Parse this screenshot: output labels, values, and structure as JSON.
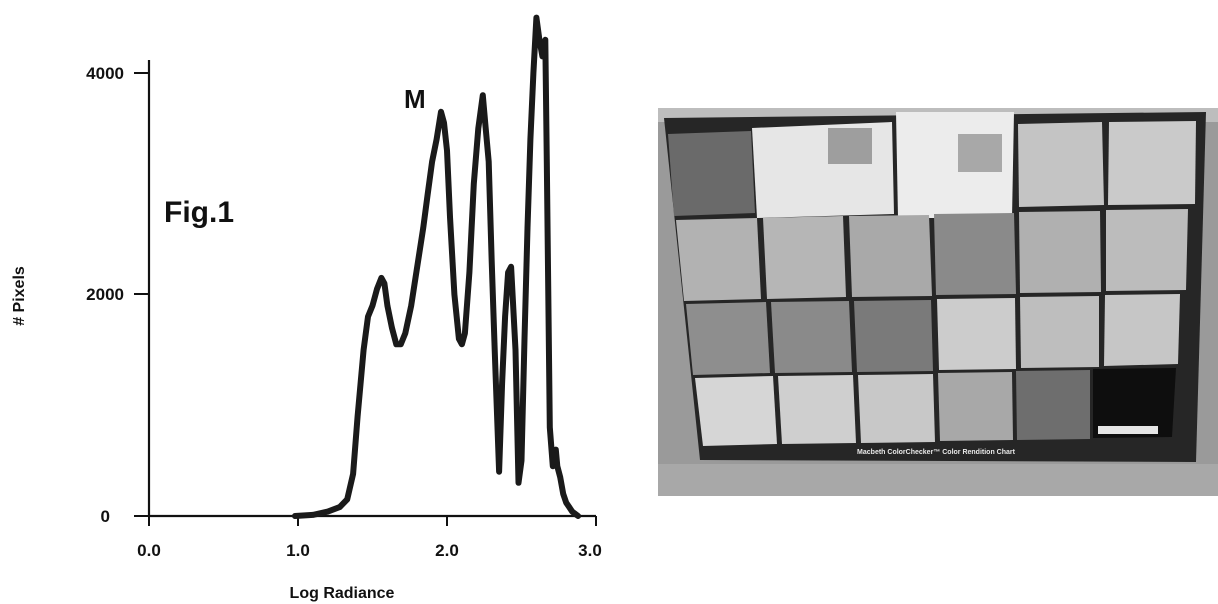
{
  "figure": {
    "fig_label": "Fig.1",
    "photo_caption": "Macbeth ColorChecker™ Color Rendition Chart"
  },
  "chart_data": {
    "type": "line",
    "xlabel": "Log Radiance",
    "ylabel": "# Pixels",
    "xlim": [
      0.0,
      3.0
    ],
    "ylim": [
      0,
      4000
    ],
    "xticks": [
      "0.0",
      "1.0",
      "2.0",
      "3.0"
    ],
    "yticks": [
      "0",
      "2000",
      "4000"
    ],
    "grid": false,
    "annotations": [
      {
        "text": "M",
        "x": 1.88,
        "y": 3650
      }
    ],
    "series": [
      {
        "color": "#1a1a1a",
        "x": [
          0.98,
          1.1,
          1.2,
          1.28,
          1.33,
          1.37,
          1.4,
          1.44,
          1.47,
          1.5,
          1.53,
          1.56,
          1.58,
          1.6,
          1.63,
          1.66,
          1.69,
          1.72,
          1.76,
          1.8,
          1.84,
          1.87,
          1.9,
          1.93,
          1.96,
          1.98,
          2.0,
          2.02,
          2.05,
          2.08,
          2.1,
          2.12,
          2.15,
          2.18,
          2.21,
          2.24,
          2.26,
          2.28,
          2.3,
          2.32,
          2.35,
          2.37,
          2.39,
          2.41,
          2.43,
          2.46,
          2.48,
          2.5,
          2.52,
          2.54,
          2.56,
          2.58,
          2.6,
          2.62,
          2.64,
          2.66,
          2.67,
          2.69,
          2.71,
          2.72,
          2.73,
          2.74,
          2.76,
          2.78,
          2.8,
          2.82,
          2.84,
          2.86,
          2.88
        ],
        "y": [
          0,
          10,
          40,
          80,
          150,
          380,
          900,
          1500,
          1800,
          1900,
          2050,
          2150,
          2100,
          1900,
          1700,
          1550,
          1550,
          1650,
          1900,
          2250,
          2600,
          2900,
          3200,
          3400,
          3650,
          3550,
          3300,
          2700,
          2000,
          1600,
          1550,
          1650,
          2200,
          3000,
          3500,
          3800,
          3500,
          3200,
          2300,
          1500,
          400,
          1200,
          1800,
          2200,
          2250,
          1500,
          300,
          500,
          1600,
          2600,
          3400,
          4000,
          4500,
          4300,
          4150,
          4300,
          3200,
          800,
          450,
          550,
          600,
          450,
          350,
          200,
          120,
          80,
          40,
          20,
          0
        ]
      }
    ]
  },
  "colors": {
    "ink": "#1a1a1a",
    "photo_frame": "#262626",
    "photo_background": "#8a8a8a"
  }
}
